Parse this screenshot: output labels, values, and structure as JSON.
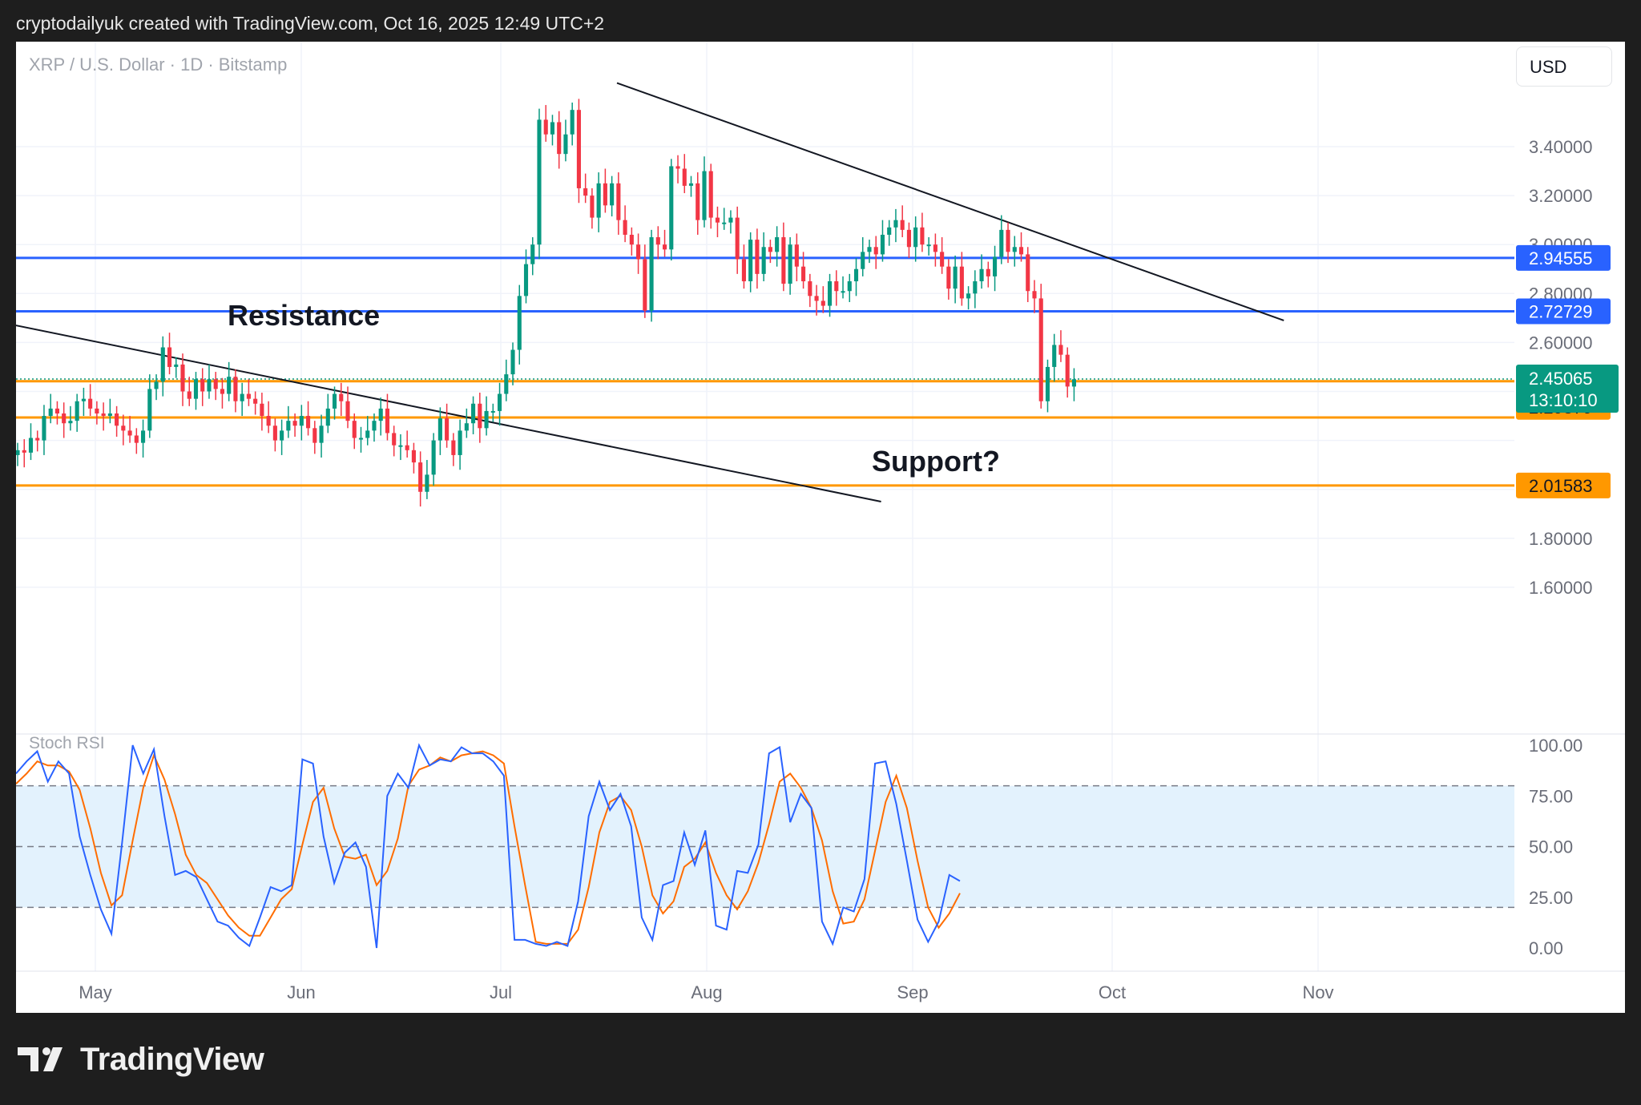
{
  "header": {
    "caption": "cryptodailyuk created with TradingView.com, Oct 16, 2025 12:49 UTC+2"
  },
  "toolbar": {
    "currency_label": "USD"
  },
  "footer": {
    "brand": "TradingView"
  },
  "colors": {
    "up": "#089981",
    "down": "#f23645",
    "resistance": "#2962ff",
    "support": "#ff9800",
    "trendline": "#131722",
    "stoch_k": "#2962ff",
    "stoch_d": "#ff6d00",
    "stoch_band": "#e3f2fd"
  },
  "chart_data": [
    {
      "type": "candlestick",
      "symbol_info": "XRP / U.S. Dollar · 1D · Bitstamp",
      "y_axis": {
        "ticks": [
          "3.40000",
          "3.20000",
          "3.00000",
          "2.80000",
          "2.60000",
          "1.80000",
          "1.60000"
        ],
        "range": [
          1.5,
          3.75
        ]
      },
      "x_axis": {
        "ticks": [
          "May",
          "Jun",
          "Jul",
          "Aug",
          "Sep",
          "Oct",
          "Nov"
        ]
      },
      "annotations": {
        "resistance_label": "Resistance",
        "support_label": "Support?"
      },
      "levels": [
        {
          "kind": "resistance",
          "price": 2.94555,
          "label": "2.94555"
        },
        {
          "kind": "resistance",
          "price": 2.72729,
          "label": "2.72729"
        },
        {
          "kind": "support",
          "price": 2.44161,
          "label": "2.44161"
        },
        {
          "kind": "support",
          "price": 2.29379,
          "label": "2.29379"
        },
        {
          "kind": "support",
          "price": 2.01583,
          "label": "2.01583"
        }
      ],
      "last_price": {
        "price": 2.45065,
        "label": "2.45065",
        "countdown": "13:10:10"
      },
      "trendlines": [
        {
          "from": [
            "2025-04-07",
            2.73
          ],
          "to": [
            "2025-08-27",
            1.95
          ]
        },
        {
          "from": [
            "2025-07-18",
            3.66
          ],
          "to": [
            "2025-10-27",
            2.69
          ]
        }
      ],
      "series": [
        {
          "close": [
            2.16,
            2.15,
            2.21,
            2.2,
            2.3,
            2.33,
            2.31,
            2.27,
            2.28,
            2.36,
            2.37,
            2.33,
            2.31,
            2.3,
            2.31,
            2.26,
            2.24,
            2.22,
            2.19,
            2.24,
            2.41,
            2.44,
            2.58,
            2.5,
            2.51,
            2.4,
            2.37,
            2.45,
            2.4,
            2.45,
            2.41,
            2.39,
            2.46,
            2.36,
            2.39,
            2.37,
            2.35,
            2.3,
            2.26,
            2.2,
            2.24,
            2.28,
            2.26,
            2.3,
            2.25,
            2.19,
            2.26,
            2.33,
            2.39,
            2.36,
            2.28,
            2.21,
            2.21,
            2.24,
            2.28,
            2.33,
            2.23,
            2.18,
            2.18,
            2.16,
            2.11,
            1.99,
            2.06,
            2.2,
            2.29,
            2.2,
            2.14,
            2.24,
            2.27,
            2.35,
            2.25,
            2.32,
            2.32,
            2.39,
            2.47,
            2.57,
            2.79,
            2.92,
            3.0,
            3.51,
            3.45,
            3.5,
            3.37,
            3.45,
            3.55,
            3.23,
            3.2,
            3.11,
            3.25,
            3.16,
            3.25,
            3.1,
            3.04,
            3.0,
            2.94,
            2.73,
            3.03,
            3.0,
            2.98,
            3.32,
            3.31,
            3.24,
            3.25,
            3.1,
            3.3,
            3.11,
            3.09,
            3.09,
            3.11,
            2.94,
            2.85,
            3.02,
            2.88,
            2.99,
            2.97,
            3.03,
            2.84,
            3.0,
            2.91,
            2.85,
            2.79,
            2.77,
            2.75,
            2.85,
            2.81,
            2.81,
            2.85,
            2.9,
            2.97,
            2.99,
            2.96,
            3.04,
            3.07,
            3.1,
            3.06,
            2.99,
            3.07,
            3.0,
            3.0,
            2.97,
            2.91,
            2.82,
            2.91,
            2.78,
            2.8,
            2.85,
            2.9,
            2.87,
            2.95,
            3.06,
            2.97,
            2.99,
            2.96,
            2.81,
            2.78,
            2.36,
            2.5,
            2.59,
            2.55,
            2.42,
            2.45
          ]
        },
        {
          "name": "Stoch RSI",
          "k": [
            86,
            92,
            97,
            82,
            92,
            86,
            55,
            36,
            19,
            7,
            52,
            100,
            86,
            98,
            65,
            36,
            38,
            35,
            24,
            13,
            11,
            5,
            1,
            15,
            30,
            28,
            31,
            93,
            91,
            55,
            32,
            47,
            52,
            40,
            0,
            75,
            86,
            79,
            100,
            90,
            93,
            92,
            99,
            96,
            96,
            92,
            85,
            4,
            4,
            2,
            1,
            3,
            1,
            23,
            65,
            82,
            68,
            76,
            60,
            15,
            4,
            31,
            33,
            57,
            41,
            58,
            11,
            9,
            38,
            37,
            51,
            96,
            99,
            62,
            76,
            69,
            13,
            2,
            20,
            18,
            34,
            91,
            92,
            71,
            43,
            14,
            3,
            13,
            36,
            33
          ],
          "d": [
            81,
            86,
            92,
            90,
            90,
            87,
            78,
            59,
            37,
            21,
            26,
            53,
            79,
            95,
            83,
            66,
            46,
            36,
            32,
            24,
            16,
            10,
            6,
            6,
            15,
            24,
            29,
            51,
            72,
            79,
            59,
            45,
            44,
            46,
            31,
            38,
            54,
            80,
            88,
            90,
            94,
            92,
            95,
            96,
            97,
            95,
            91,
            60,
            31,
            3,
            2,
            2,
            2,
            9,
            30,
            57,
            72,
            75,
            68,
            50,
            26,
            17,
            23,
            40,
            44,
            52,
            37,
            26,
            19,
            28,
            42,
            61,
            82,
            86,
            79,
            69,
            53,
            28,
            12,
            13,
            24,
            48,
            72,
            85,
            69,
            43,
            20,
            10,
            17,
            27
          ]
        }
      ]
    },
    {
      "type": "line",
      "title": "Stoch RSI",
      "y_axis": {
        "ticks": [
          "100.00",
          "75.00",
          "50.00",
          "25.00",
          "0.00"
        ],
        "range": [
          0,
          100
        ]
      },
      "reference_levels": [
        80,
        50,
        20
      ]
    }
  ]
}
